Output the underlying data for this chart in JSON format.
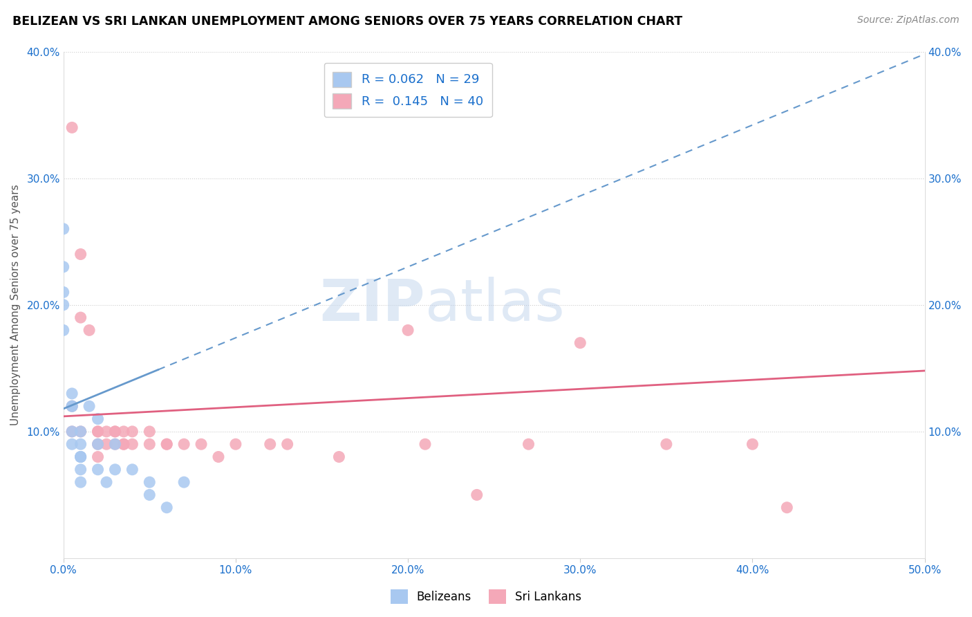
{
  "title": "BELIZEAN VS SRI LANKAN UNEMPLOYMENT AMONG SENIORS OVER 75 YEARS CORRELATION CHART",
  "source": "Source: ZipAtlas.com",
  "ylabel": "Unemployment Among Seniors over 75 years",
  "xlim": [
    0.0,
    0.5
  ],
  "ylim": [
    0.0,
    0.4
  ],
  "xticks": [
    0.0,
    0.1,
    0.2,
    0.3,
    0.4,
    0.5
  ],
  "yticks": [
    0.0,
    0.1,
    0.2,
    0.3,
    0.4
  ],
  "xtick_labels": [
    "0.0%",
    "10.0%",
    "20.0%",
    "30.0%",
    "40.0%",
    "50.0%"
  ],
  "ytick_labels": [
    "",
    "10.0%",
    "20.0%",
    "30.0%",
    "40.0%"
  ],
  "right_ytick_labels": [
    "",
    "10.0%",
    "20.0%",
    "30.0%",
    "40.0%"
  ],
  "belizean_R": 0.062,
  "belizean_N": 29,
  "srilankan_R": 0.145,
  "srilankan_N": 40,
  "belizean_color": "#a8c8f0",
  "srilankan_color": "#f4a8b8",
  "belizean_line_color": "#6699cc",
  "srilankan_line_color": "#e06080",
  "watermark_zip": "ZIP",
  "watermark_atlas": "atlas",
  "belizean_line_x0": 0.0,
  "belizean_line_y0": 0.118,
  "belizean_line_x1": 0.5,
  "belizean_line_y1": 0.398,
  "srilankan_line_x0": 0.0,
  "srilankan_line_y0": 0.112,
  "srilankan_line_x1": 0.5,
  "srilankan_line_y1": 0.148,
  "belizean_x": [
    0.0,
    0.0,
    0.0,
    0.0,
    0.0,
    0.005,
    0.005,
    0.005,
    0.005,
    0.005,
    0.01,
    0.01,
    0.01,
    0.01,
    0.01,
    0.01,
    0.01,
    0.015,
    0.02,
    0.02,
    0.02,
    0.025,
    0.03,
    0.03,
    0.04,
    0.05,
    0.05,
    0.06,
    0.07
  ],
  "belizean_y": [
    0.26,
    0.23,
    0.21,
    0.2,
    0.18,
    0.13,
    0.12,
    0.12,
    0.1,
    0.09,
    0.08,
    0.08,
    0.1,
    0.09,
    0.08,
    0.07,
    0.06,
    0.12,
    0.11,
    0.09,
    0.07,
    0.06,
    0.09,
    0.07,
    0.07,
    0.06,
    0.05,
    0.04,
    0.06
  ],
  "srilankan_x": [
    0.005,
    0.005,
    0.005,
    0.01,
    0.01,
    0.01,
    0.015,
    0.02,
    0.02,
    0.02,
    0.02,
    0.025,
    0.025,
    0.03,
    0.03,
    0.03,
    0.035,
    0.035,
    0.035,
    0.04,
    0.04,
    0.05,
    0.05,
    0.06,
    0.06,
    0.07,
    0.08,
    0.09,
    0.1,
    0.12,
    0.13,
    0.16,
    0.2,
    0.21,
    0.24,
    0.27,
    0.3,
    0.35,
    0.4,
    0.42
  ],
  "srilankan_y": [
    0.34,
    0.12,
    0.1,
    0.24,
    0.19,
    0.1,
    0.18,
    0.1,
    0.1,
    0.09,
    0.08,
    0.1,
    0.09,
    0.1,
    0.1,
    0.09,
    0.1,
    0.09,
    0.09,
    0.1,
    0.09,
    0.1,
    0.09,
    0.09,
    0.09,
    0.09,
    0.09,
    0.08,
    0.09,
    0.09,
    0.09,
    0.08,
    0.18,
    0.09,
    0.05,
    0.09,
    0.17,
    0.09,
    0.09,
    0.04
  ]
}
